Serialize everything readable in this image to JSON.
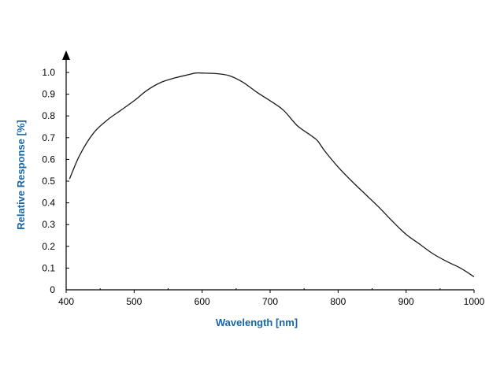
{
  "chart_data": {
    "type": "line",
    "xlabel": "Wavelength [nm]",
    "ylabel": "Relative Response [%]",
    "xlim": [
      400,
      1000
    ],
    "ylim": [
      0,
      1.0
    ],
    "grid": false,
    "x_ticks": [
      "400",
      "500",
      "600",
      "700",
      "800",
      "900",
      "1000"
    ],
    "x_tick_values": [
      400,
      500,
      600,
      700,
      800,
      900,
      1000
    ],
    "x_minor_ticks": [
      450,
      550,
      650,
      750,
      850,
      950
    ],
    "y_ticks": [
      "0",
      "0.1",
      "0.2",
      "0.3",
      "0.4",
      "0.5",
      "0.6",
      "0.7",
      "0.8",
      "0.9",
      "1.0"
    ],
    "y_tick_values": [
      0,
      0.1,
      0.2,
      0.3,
      0.4,
      0.5,
      0.6,
      0.7,
      0.8,
      0.9,
      1.0
    ],
    "series": [
      {
        "color": "#1a1a1a",
        "x": [
          405,
          420,
          440,
          460,
          480,
          500,
          520,
          540,
          560,
          580,
          590,
          600,
          620,
          640,
          660,
          680,
          700,
          720,
          740,
          760,
          770,
          780,
          800,
          820,
          840,
          860,
          880,
          900,
          920,
          940,
          960,
          980,
          1000
        ],
        "values": [
          0.51,
          0.62,
          0.72,
          0.78,
          0.825,
          0.87,
          0.92,
          0.955,
          0.975,
          0.99,
          0.997,
          0.997,
          0.995,
          0.985,
          0.955,
          0.91,
          0.87,
          0.825,
          0.755,
          0.71,
          0.685,
          0.64,
          0.565,
          0.5,
          0.44,
          0.38,
          0.315,
          0.255,
          0.21,
          0.165,
          0.13,
          0.1,
          0.06
        ]
      }
    ]
  },
  "colors": {
    "axis_title": "#1565a8",
    "axis": "#000000"
  }
}
